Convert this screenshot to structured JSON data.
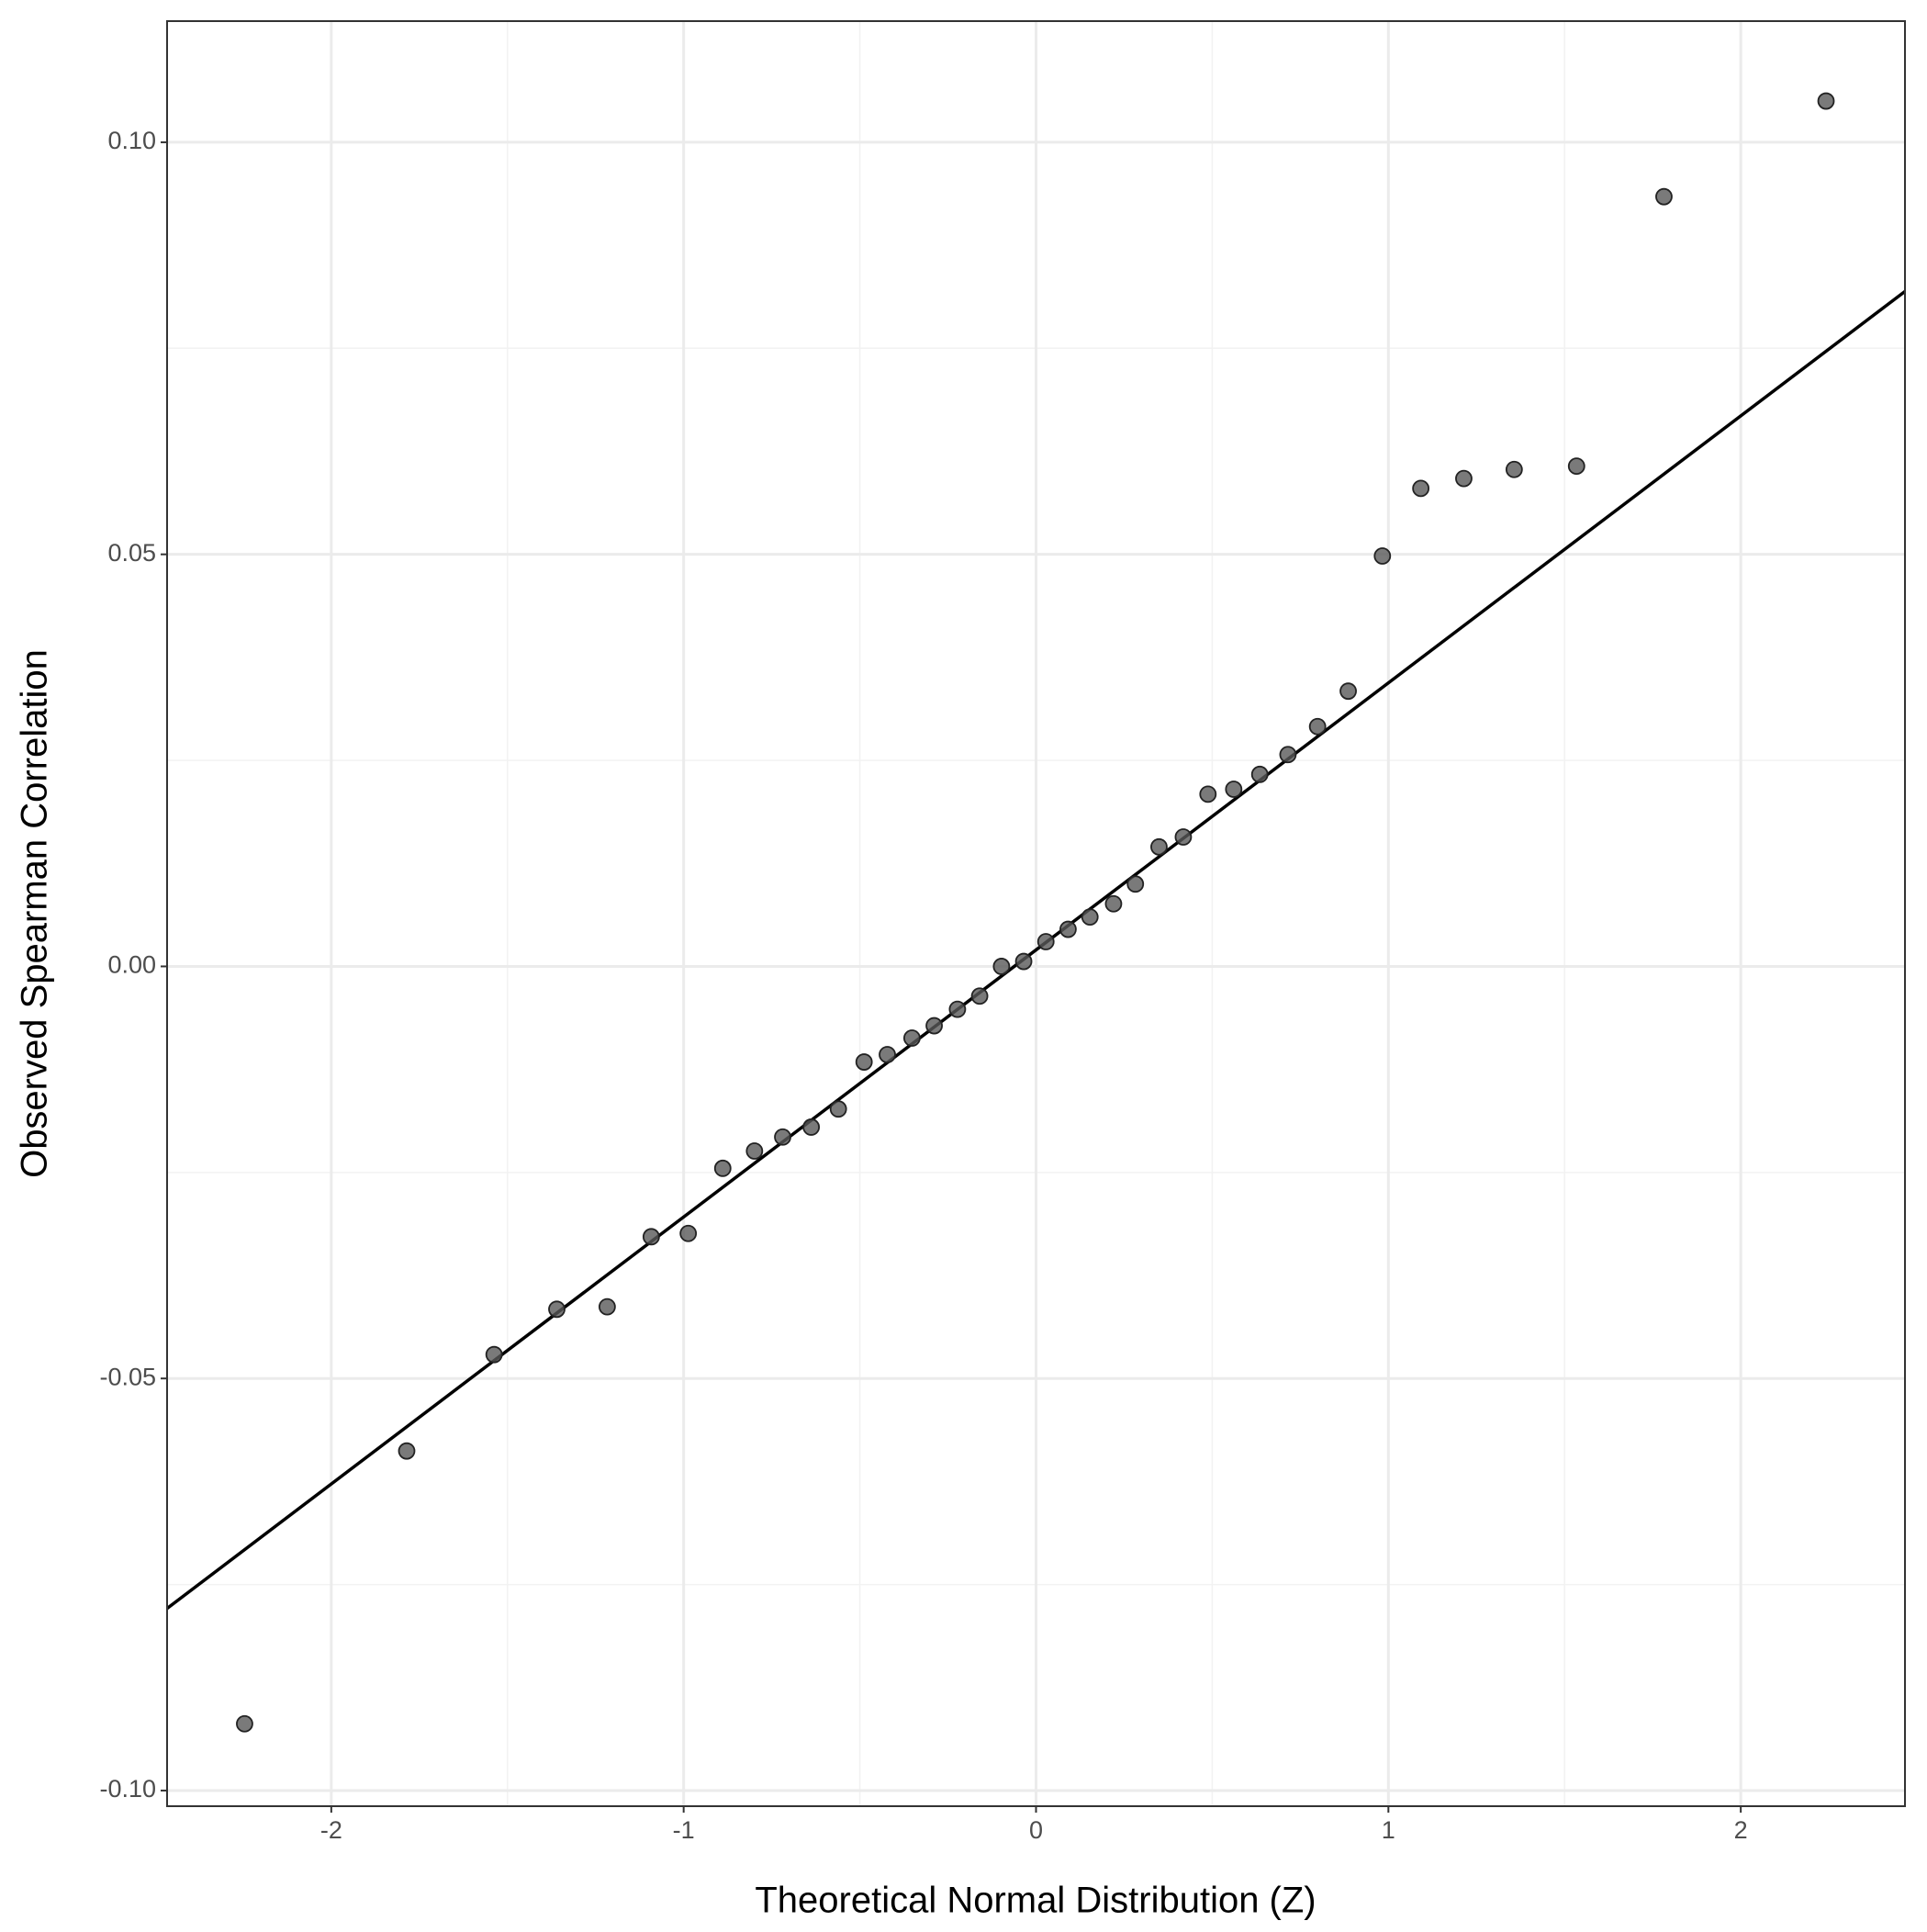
{
  "chart_data": {
    "type": "scatter",
    "xlabel": "Theoretical Normal Distribution (Z)",
    "ylabel": "Observed Spearman Correlation",
    "xlim": [
      -2.466,
      2.466
    ],
    "ylim": [
      -0.1019,
      0.1147
    ],
    "xticks": [
      -2,
      -1,
      0,
      1,
      2
    ],
    "yticks": [
      {
        "value": -0.1,
        "label": "-0.10"
      },
      {
        "value": -0.05,
        "label": "-0.05"
      },
      {
        "value": 0,
        "label": "0.00"
      },
      {
        "value": 0.05,
        "label": "0.05"
      },
      {
        "value": 0.1,
        "label": "0.10"
      }
    ],
    "xminor": [
      -1.5,
      -0.5,
      0.5,
      1.5
    ],
    "yminor": [
      -0.075,
      -0.025,
      0.025,
      0.075
    ],
    "grid": true,
    "color": "#595959",
    "x": [
      -2.246,
      -1.786,
      -1.538,
      -1.36,
      -1.217,
      -1.092,
      -0.987,
      -0.889,
      -0.799,
      -0.719,
      -0.638,
      -0.561,
      -0.488,
      -0.422,
      -0.352,
      -0.289,
      -0.223,
      -0.16,
      -0.098,
      -0.035,
      0.028,
      0.091,
      0.153,
      0.22,
      0.282,
      0.349,
      0.418,
      0.488,
      0.561,
      0.635,
      0.715,
      0.799,
      0.886,
      0.983,
      1.092,
      1.214,
      1.357,
      1.534,
      1.782,
      2.242
    ],
    "values": [
      -0.0919,
      -0.0588,
      -0.0471,
      -0.0416,
      -0.0413,
      -0.0328,
      -0.0324,
      -0.0245,
      -0.0224,
      -0.0207,
      -0.0195,
      -0.0173,
      -0.0116,
      -0.0107,
      -0.0087,
      -0.0072,
      -0.0052,
      -0.0036,
      0.0,
      0.0006,
      0.003,
      0.0045,
      0.006,
      0.0076,
      0.01,
      0.0145,
      0.0157,
      0.0209,
      0.0215,
      0.0233,
      0.0257,
      0.0291,
      0.0334,
      0.0498,
      0.058,
      0.0592,
      0.0603,
      0.0607,
      0.0934,
      0.105
    ],
    "reference_line": {
      "x": [
        -2.466,
        2.466
      ],
      "y": [
        -0.0779,
        0.0819
      ],
      "color": "#000000"
    }
  }
}
